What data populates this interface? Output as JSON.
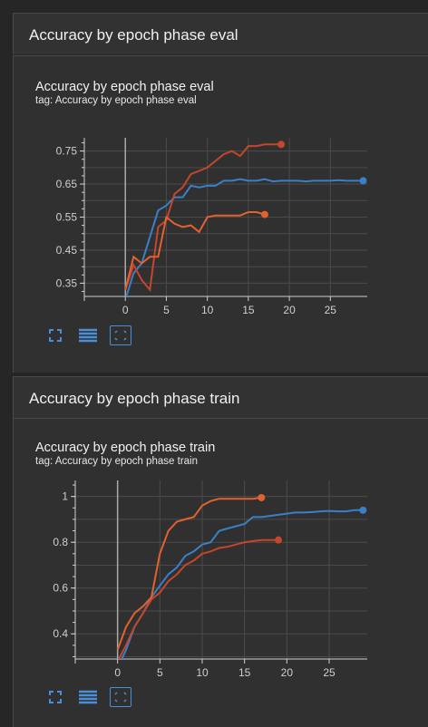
{
  "sections": [
    {
      "header": "Accuracy by epoch phase eval",
      "card": {
        "title": "Accuracy by epoch phase eval",
        "tag": "tag: Accuracy by epoch phase eval"
      }
    },
    {
      "header": "Accuracy by epoch phase train",
      "card": {
        "title": "Accuracy by epoch phase train",
        "tag": "tag: Accuracy by epoch phase train"
      }
    }
  ],
  "toolbar_icons": [
    "fit-domain-icon",
    "toggle-log-scale-icon",
    "expand-chart-icon"
  ],
  "colors": {
    "blue": "#3a80c8",
    "orange": "#e2622f",
    "red": "#c4462c",
    "background": "#262626",
    "card": "#303030",
    "accent": "#4a8fd8"
  },
  "chart_data": [
    {
      "type": "line",
      "xlim": [
        -5,
        29.5
      ],
      "ylim": [
        0.31,
        0.79
      ],
      "xticks": [
        0,
        5,
        10,
        15,
        20,
        25
      ],
      "yticks": [
        0.35,
        0.45,
        0.55,
        0.65,
        0.75
      ],
      "ytick_labels": [
        "0.35",
        "0.45",
        "0.55",
        "0.65",
        "0.75"
      ],
      "series": [
        {
          "color": "#3a80c8",
          "x": [
            0,
            1,
            2,
            3,
            4,
            5,
            6,
            7,
            8,
            9,
            10,
            11,
            12,
            13,
            14,
            15,
            16,
            17,
            18,
            19,
            20,
            21,
            22,
            23,
            24,
            25,
            26,
            27,
            28,
            29
          ],
          "y": [
            0.3,
            0.38,
            0.41,
            0.49,
            0.57,
            0.585,
            0.61,
            0.61,
            0.645,
            0.64,
            0.645,
            0.645,
            0.66,
            0.66,
            0.665,
            0.66,
            0.66,
            0.665,
            0.658,
            0.66,
            0.66,
            0.66,
            0.658,
            0.66,
            0.66,
            0.66,
            0.662,
            0.66,
            0.66,
            0.66
          ]
        },
        {
          "color": "#c4462c",
          "x": [
            0,
            1,
            2,
            3,
            4,
            5,
            6,
            7,
            8,
            9,
            10,
            11,
            12,
            13,
            14,
            15,
            16,
            17,
            18,
            19
          ],
          "y": [
            0.33,
            0.405,
            0.36,
            0.33,
            0.52,
            0.54,
            0.62,
            0.64,
            0.68,
            0.69,
            0.7,
            0.72,
            0.74,
            0.75,
            0.735,
            0.765,
            0.765,
            0.77,
            0.77,
            0.77
          ]
        },
        {
          "color": "#e2622f",
          "x": [
            0,
            1,
            2,
            3,
            4,
            5,
            6,
            7,
            8,
            9,
            10,
            11,
            12,
            13,
            14,
            15,
            16,
            17
          ],
          "y": [
            0.33,
            0.43,
            0.41,
            0.43,
            0.43,
            0.55,
            0.53,
            0.52,
            0.525,
            0.505,
            0.55,
            0.555,
            0.555,
            0.555,
            0.555,
            0.565,
            0.565,
            0.558
          ]
        }
      ]
    },
    {
      "type": "line",
      "xlim": [
        -5,
        29.5
      ],
      "ylim": [
        0.29,
        1.07
      ],
      "xticks": [
        0,
        5,
        10,
        15,
        20,
        25
      ],
      "yticks": [
        0.4,
        0.6,
        0.8,
        1.0
      ],
      "ytick_labels": [
        "0.4",
        "0.6",
        "0.8",
        "1"
      ],
      "series": [
        {
          "color": "#3a80c8",
          "x": [
            0,
            1,
            2,
            3,
            4,
            5,
            6,
            7,
            8,
            9,
            10,
            11,
            12,
            13,
            14,
            15,
            16,
            17,
            18,
            19,
            20,
            21,
            22,
            23,
            24,
            25,
            26,
            27,
            28,
            29
          ],
          "y": [
            0.25,
            0.33,
            0.43,
            0.49,
            0.56,
            0.61,
            0.66,
            0.69,
            0.74,
            0.76,
            0.79,
            0.8,
            0.85,
            0.86,
            0.87,
            0.88,
            0.91,
            0.91,
            0.915,
            0.92,
            0.925,
            0.93,
            0.93,
            0.932,
            0.935,
            0.937,
            0.935,
            0.935,
            0.94,
            0.94
          ]
        },
        {
          "color": "#c4462c",
          "x": [
            0,
            1,
            2,
            3,
            4,
            5,
            6,
            7,
            8,
            9,
            10,
            11,
            12,
            13,
            14,
            15,
            16,
            17,
            18,
            19
          ],
          "y": [
            0.28,
            0.35,
            0.43,
            0.49,
            0.55,
            0.58,
            0.63,
            0.66,
            0.7,
            0.72,
            0.75,
            0.76,
            0.775,
            0.78,
            0.79,
            0.8,
            0.805,
            0.81,
            0.81,
            0.81
          ]
        },
        {
          "color": "#e2622f",
          "x": [
            0,
            1,
            2,
            3,
            4,
            5,
            6,
            7,
            8,
            9,
            10,
            11,
            12,
            13,
            14,
            15,
            16,
            17
          ],
          "y": [
            0.33,
            0.43,
            0.49,
            0.52,
            0.56,
            0.75,
            0.85,
            0.89,
            0.9,
            0.91,
            0.96,
            0.98,
            0.99,
            0.99,
            0.99,
            0.99,
            0.99,
            0.995
          ]
        }
      ]
    }
  ]
}
